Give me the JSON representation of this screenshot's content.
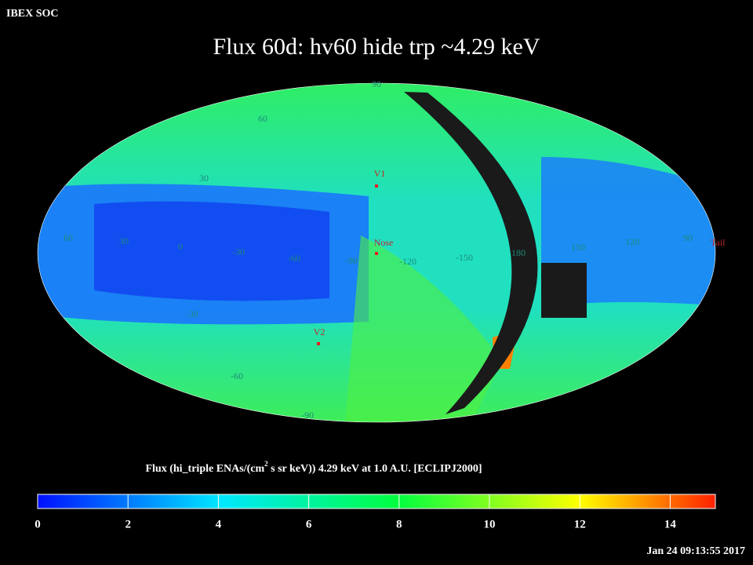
{
  "header": "IBEX SOC",
  "title": "Flux   60d: hv60 hide trp ~4.29 keV",
  "map": {
    "grid_labels": [
      "90",
      "60",
      "30",
      "60",
      "30",
      "0",
      "-30",
      "-60",
      "-90",
      "-120",
      "-150",
      "180",
      "150",
      "120",
      "90",
      "-30",
      "-60",
      "-90"
    ],
    "markers": [
      "V1",
      "Nose",
      "V2"
    ],
    "tail": "Tail"
  },
  "colorbar": {
    "label_before": "Flux (hi_triple ENAs/(cm",
    "label_sup": "2",
    "label_after": " s sr keV))  4.29 keV at 1.0 A.U. [ECLIPJ2000]",
    "range": [
      0,
      15
    ],
    "ticks": [
      0,
      2,
      4,
      6,
      8,
      10,
      12,
      14
    ]
  },
  "timestamp": "Jan 24 09:13:55 2017"
}
